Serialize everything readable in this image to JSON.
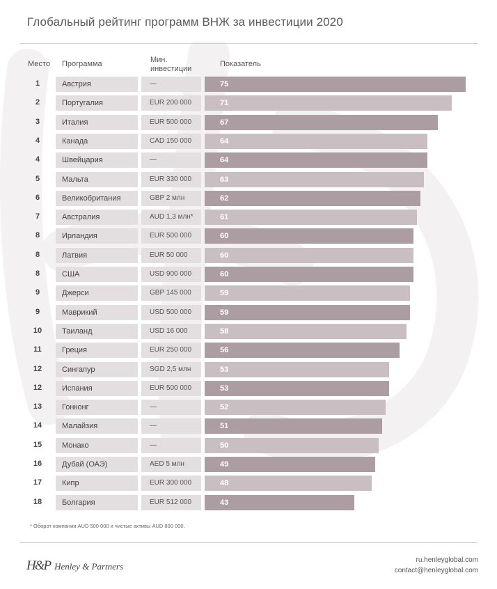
{
  "title": "Глобальный рейтинг программ ВНЖ за инвестиции 2020",
  "headers": {
    "rank": "Место",
    "program": "Программа",
    "investment_line1": "Мин.",
    "investment_line2": "инвестиции",
    "score": "Показатель"
  },
  "colors": {
    "bar_dark": "#ab9da2",
    "bar_light": "#c9bfc2",
    "cell_bg": "#e3dfe0"
  },
  "chart_data": {
    "type": "bar",
    "orientation": "horizontal",
    "columns": [
      "Место",
      "Программа",
      "Мин. инвестиции",
      "Показатель"
    ],
    "rows": [
      {
        "rank": "1",
        "program": "Австрия",
        "investment": "—",
        "score": 75
      },
      {
        "rank": "2",
        "program": "Португалия",
        "investment": "EUR 200 000",
        "score": 71
      },
      {
        "rank": "3",
        "program": "Италия",
        "investment": "EUR 500 000",
        "score": 67
      },
      {
        "rank": "4",
        "program": "Канада",
        "investment": "CAD 150 000",
        "score": 64
      },
      {
        "rank": "4",
        "program": "Швейцария",
        "investment": "—",
        "score": 64
      },
      {
        "rank": "5",
        "program": "Мальта",
        "investment": "EUR 330 000",
        "score": 63
      },
      {
        "rank": "6",
        "program": "Великобритания",
        "investment": "GBP 2 млн",
        "score": 62
      },
      {
        "rank": "7",
        "program": "Австралия",
        "investment": "AUD 1,3 млн*",
        "score": 61
      },
      {
        "rank": "8",
        "program": "Ирландия",
        "investment": "EUR 500 000",
        "score": 60
      },
      {
        "rank": "8",
        "program": "Латвия",
        "investment": "EUR 50 000",
        "score": 60
      },
      {
        "rank": "8",
        "program": "США",
        "investment": "USD 900 000",
        "score": 60
      },
      {
        "rank": "9",
        "program": "Джерси",
        "investment": "GBP 145 000",
        "score": 59
      },
      {
        "rank": "9",
        "program": "Маврикий",
        "investment": "USD 500 000",
        "score": 59
      },
      {
        "rank": "10",
        "program": "Таиланд",
        "investment": "USD 16 000",
        "score": 58
      },
      {
        "rank": "11",
        "program": "Греция",
        "investment": "EUR 250 000",
        "score": 56
      },
      {
        "rank": "12",
        "program": "Сингапур",
        "investment": "SGD 2,5 млн",
        "score": 53
      },
      {
        "rank": "12",
        "program": "Испания",
        "investment": "EUR 500 000",
        "score": 53
      },
      {
        "rank": "13",
        "program": "Гонконг",
        "investment": "—",
        "score": 52
      },
      {
        "rank": "14",
        "program": "Малайзия",
        "investment": "—",
        "score": 51
      },
      {
        "rank": "15",
        "program": "Монако",
        "investment": "—",
        "score": 50
      },
      {
        "rank": "16",
        "program": "Дубай (ОАЭ)",
        "investment": "AED 5 млн",
        "score": 49
      },
      {
        "rank": "17",
        "program": "Кипр",
        "investment": "EUR 300 000",
        "score": 48
      },
      {
        "rank": "18",
        "program": "Болгария",
        "investment": "EUR 512 000",
        "score": 43
      }
    ]
  },
  "footnote": "* Оборот компании AUD 500 000 и чистые активы AUD 800 000.",
  "brand": {
    "logo_mark": "H&P",
    "name": "Henley & Partners"
  },
  "contact": {
    "site": "ru.henleyglobal.com",
    "email": "contact@henleyglobal.com"
  }
}
